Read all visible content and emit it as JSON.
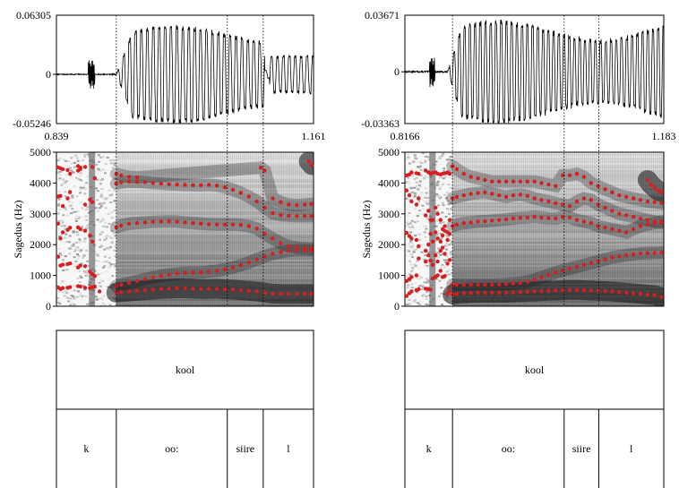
{
  "chart_data": [
    {
      "type": "line",
      "subtype": "waveform-spectrogram-textgrid",
      "waveform": {
        "ymax_label": "0.06305",
        "zero_label": "0",
        "ymin_label": "-0.05246",
        "ylim": [
          -0.05246,
          0.06305
        ]
      },
      "time_axis": {
        "start_label": "0.839",
        "end_label": "1.161",
        "xlim": [
          0.839,
          1.161
        ]
      },
      "spectrogram": {
        "ylabel": "Sagedus (Hz)",
        "yticks": [
          "0",
          "1000",
          "2000",
          "3000",
          "4000",
          "5000"
        ],
        "ylim": [
          0,
          5000
        ]
      },
      "formant_series": [
        {
          "x": [
            0.841,
            0.844,
            0.847,
            0.853,
            0.856,
            0.866,
            0.869,
            0.875,
            0.881,
            0.884,
            0.887,
            0.893
          ],
          "y": [
            610,
            560,
            590,
            600,
            620,
            650,
            640,
            600,
            590,
            620,
            640,
            480
          ]
        },
        {
          "x": [
            0.841,
            0.844,
            0.847,
            0.853,
            0.856,
            0.866,
            0.869,
            0.875,
            0.881,
            0.884,
            0.887
          ],
          "y": [
            1610,
            1320,
            1350,
            1370,
            1390,
            1260,
            1320,
            1300,
            1120,
            1040,
            980
          ]
        },
        {
          "x": [
            0.841,
            0.844,
            0.847,
            0.853,
            0.856,
            0.866,
            0.869,
            0.875,
            0.881,
            0.884
          ],
          "y": [
            2680,
            2200,
            2400,
            2480,
            2550,
            2560,
            2500,
            2450,
            2300,
            2100
          ]
        },
        {
          "x": [
            0.841,
            0.844,
            0.847,
            0.853,
            0.856,
            0.866,
            0.869,
            0.875,
            0.881,
            0.884
          ],
          "y": [
            3560,
            3580,
            3250,
            3500,
            3700,
            4400,
            4450,
            3300,
            3460,
            3380
          ]
        },
        {
          "x": [
            0.841,
            0.844,
            0.847,
            0.853,
            0.856,
            0.866,
            0.869,
            0.875,
            0.884,
            0.887
          ],
          "y": [
            4510,
            4480,
            4450,
            4420,
            4300,
            4550,
            4500,
            4520,
            4520,
            4160
          ]
        },
        {
          "x": [
            0.914,
            0.92,
            0.93,
            0.94,
            0.95,
            0.96,
            0.97,
            0.98,
            0.99,
            1.0,
            1.01,
            1.02,
            1.03,
            1.04,
            1.05,
            1.06,
            1.07,
            1.08,
            1.09,
            1.1,
            1.11,
            1.12,
            1.13,
            1.14,
            1.15,
            1.158
          ],
          "y": [
            440,
            460,
            480,
            500,
            520,
            540,
            560,
            570,
            580,
            580,
            570,
            560,
            560,
            570,
            550,
            540,
            520,
            500,
            480,
            440,
            410,
            400,
            400,
            400,
            400,
            400
          ]
        },
        {
          "x": [
            0.914,
            0.92,
            0.93,
            0.94,
            0.95,
            0.96,
            0.97,
            0.98,
            0.99,
            1.0,
            1.01,
            1.02,
            1.03,
            1.04,
            1.05,
            1.06,
            1.07,
            1.08,
            1.09,
            1.1,
            1.11,
            1.12,
            1.13,
            1.14,
            1.15,
            1.158
          ],
          "y": [
            660,
            700,
            760,
            820,
            880,
            940,
            990,
            1030,
            1060,
            1080,
            1090,
            1100,
            1120,
            1150,
            1200,
            1260,
            1330,
            1420,
            1520,
            1620,
            1700,
            1760,
            1800,
            1820,
            1820,
            1810
          ]
        },
        {
          "x": [
            0.914,
            0.92,
            0.93,
            0.94,
            0.95,
            0.96,
            0.97,
            0.98,
            0.99,
            1.0,
            1.01,
            1.02,
            1.03,
            1.04,
            1.05,
            1.06,
            1.07,
            1.08,
            1.09,
            1.1,
            1.11,
            1.12,
            1.13,
            1.14,
            1.15,
            1.158
          ],
          "y": [
            2560,
            2620,
            2680,
            2700,
            2720,
            2740,
            2750,
            2760,
            2750,
            2720,
            2700,
            2680,
            2660,
            2650,
            2650,
            2650,
            2640,
            2600,
            2520,
            2350,
            2200,
            2050,
            1950,
            1900,
            1880,
            1870
          ]
        },
        {
          "x": [
            0.914,
            0.92,
            0.93,
            0.94,
            0.95,
            0.96,
            0.97,
            0.98,
            0.99,
            1.0,
            1.01,
            1.02,
            1.03,
            1.04,
            1.05,
            1.06,
            1.07,
            1.08,
            1.09,
            1.1,
            1.11,
            1.12,
            1.13,
            1.14,
            1.15,
            1.158
          ],
          "y": [
            3980,
            4020,
            4050,
            4040,
            4030,
            4000,
            3980,
            3960,
            3950,
            3940,
            3930,
            3930,
            3940,
            3920,
            3860,
            3780,
            3680,
            3560,
            3400,
            3200,
            3020,
            2960,
            2940,
            2930,
            2930,
            2930
          ]
        },
        {
          "x": [
            0.914,
            0.92,
            0.93,
            0.94,
            1.095,
            1.1,
            1.11,
            1.12,
            1.13,
            1.14,
            1.15,
            1.158
          ],
          "y": [
            4300,
            4250,
            4200,
            4180,
            4500,
            4400,
            3500,
            3380,
            3300,
            3280,
            3300,
            3320
          ]
        },
        {
          "x": [
            1.155,
            1.159
          ],
          "y": [
            4700,
            4580
          ]
        }
      ],
      "boundaries": [
        0.914,
        1.053,
        1.098
      ],
      "tiers": [
        {
          "intervals": [
            {
              "label": "kool"
            }
          ]
        },
        {
          "intervals": [
            {
              "label": "k"
            },
            {
              "label": "oo:"
            },
            {
              "label": "siire"
            },
            {
              "label": "l"
            }
          ]
        }
      ]
    },
    {
      "type": "line",
      "subtype": "waveform-spectrogram-textgrid",
      "waveform": {
        "ymax_label": "0.03671",
        "zero_label": "0",
        "ymin_label": "-0.03363",
        "ylim": [
          -0.03363,
          0.03671
        ]
      },
      "time_axis": {
        "start_label": "0.8166",
        "end_label": "1.183",
        "xlim": [
          0.8166,
          1.183
        ]
      },
      "spectrogram": {
        "ylabel": "Sagedus (Hz)",
        "yticks": [
          "0",
          "1000",
          "2000",
          "3000",
          "4000",
          "5000"
        ],
        "ylim": [
          0,
          5000
        ]
      },
      "formant_series": [
        {
          "x": [
            0.819,
            0.823,
            0.826,
            0.833,
            0.836,
            0.846,
            0.85,
            0.853,
            0.856,
            0.86,
            0.863,
            0.867,
            0.87,
            0.873,
            0.877,
            0.88
          ],
          "y": [
            330,
            420,
            480,
            520,
            550,
            570,
            560,
            540,
            900,
            950,
            1000,
            1150,
            950,
            980,
            400,
            500
          ]
        },
        {
          "x": [
            0.819,
            0.823,
            0.826,
            0.833,
            0.836,
            0.846,
            0.85,
            0.853,
            0.856,
            0.86,
            0.863,
            0.867,
            0.87,
            0.873,
            0.877,
            0.88
          ],
          "y": [
            820,
            880,
            950,
            1000,
            1550,
            1800,
            1650,
            1480,
            1350,
            1650,
            1450,
            1800,
            1900,
            1700,
            1380,
            1500
          ]
        },
        {
          "x": [
            0.819,
            0.823,
            0.826,
            0.833,
            0.836,
            0.846,
            0.85,
            0.853,
            0.856,
            0.86,
            0.863,
            0.867,
            0.87,
            0.873,
            0.877,
            0.88
          ],
          "y": [
            2380,
            2280,
            2200,
            2150,
            1950,
            1450,
            2000,
            2350,
            2100,
            2400,
            2200,
            2100,
            2300,
            2450,
            2150,
            2350
          ]
        },
        {
          "x": [
            0.819,
            0.823,
            0.826,
            0.833,
            0.836,
            0.846,
            0.85,
            0.853,
            0.856,
            0.86,
            0.863,
            0.867,
            0.87,
            0.873,
            0.877,
            0.88
          ],
          "y": [
            3760,
            3600,
            3400,
            3300,
            3500,
            2950,
            3100,
            2800,
            2800,
            3200,
            3000,
            2800,
            2500,
            2600,
            2400,
            2800
          ]
        },
        {
          "x": [
            0.819,
            0.823,
            0.826,
            0.833,
            0.836,
            0.846,
            0.85,
            0.853,
            0.856,
            0.86,
            0.863,
            0.867,
            0.87,
            0.873,
            0.877,
            0.88
          ],
          "y": [
            4250,
            4280,
            4350,
            4320,
            4300,
            4400,
            4350,
            4300,
            4330,
            4350,
            4300,
            4280,
            4300,
            4320,
            4350,
            4300
          ]
        },
        {
          "x": [
            0.884,
            0.89,
            0.9,
            0.91,
            0.92,
            0.93,
            0.94,
            0.95,
            0.96,
            0.97,
            0.98,
            0.99,
            1.0,
            1.01,
            1.02,
            1.03,
            1.04,
            1.05,
            1.06,
            1.07,
            1.08,
            1.09,
            1.1,
            1.11,
            1.12,
            1.13,
            1.14,
            1.15,
            1.16,
            1.17,
            1.18
          ],
          "y": [
            380,
            400,
            420,
            430,
            440,
            440,
            440,
            440,
            440,
            450,
            460,
            470,
            480,
            490,
            500,
            510,
            520,
            530,
            530,
            520,
            510,
            500,
            490,
            480,
            460,
            440,
            420,
            400,
            380,
            360,
            300
          ]
        },
        {
          "x": [
            0.884,
            0.89,
            0.9,
            0.91,
            0.92,
            0.93,
            0.94,
            0.95,
            0.96,
            0.97,
            0.98,
            0.99,
            1.0,
            1.01,
            1.02,
            1.03,
            1.04,
            1.05,
            1.06,
            1.07,
            1.08,
            1.09,
            1.1,
            1.11,
            1.12,
            1.13,
            1.14,
            1.15,
            1.16,
            1.17,
            1.18
          ],
          "y": [
            700,
            700,
            700,
            700,
            700,
            700,
            700,
            710,
            720,
            740,
            760,
            800,
            860,
            940,
            1020,
            1100,
            1160,
            1220,
            1280,
            1340,
            1400,
            1460,
            1520,
            1580,
            1620,
            1660,
            1690,
            1710,
            1720,
            1730,
            1740
          ]
        },
        {
          "x": [
            0.884,
            0.89,
            0.9,
            0.91,
            0.92,
            0.93,
            0.94,
            0.95,
            0.96,
            0.97,
            0.98,
            0.99,
            1.0,
            1.01,
            1.02,
            1.03,
            1.04,
            1.05,
            1.06,
            1.07,
            1.08,
            1.09,
            1.1,
            1.11,
            1.12,
            1.13,
            1.14,
            1.15,
            1.16,
            1.17,
            1.18
          ],
          "y": [
            2600,
            2650,
            2700,
            2720,
            2750,
            2760,
            2780,
            2800,
            2820,
            2850,
            2870,
            2880,
            2900,
            2880,
            2860,
            2850,
            2900,
            2880,
            2800,
            2750,
            2700,
            2600,
            2550,
            2500,
            2450,
            2400,
            2500,
            2600,
            2650,
            2700,
            2750
          ]
        },
        {
          "x": [
            0.884,
            0.89,
            0.9,
            0.91,
            0.92,
            0.93,
            0.94,
            0.95,
            0.96,
            0.97,
            0.98,
            0.99,
            1.0,
            1.01,
            1.02,
            1.03,
            1.04,
            1.05,
            1.06,
            1.07,
            1.08,
            1.09,
            1.1,
            1.11,
            1.12,
            1.13,
            1.14,
            1.15,
            1.16,
            1.17,
            1.18
          ],
          "y": [
            3500,
            3550,
            3600,
            3650,
            3680,
            3700,
            3650,
            3600,
            3550,
            3600,
            3620,
            3580,
            3500,
            3450,
            3400,
            3350,
            3300,
            3250,
            3400,
            3500,
            3450,
            3300,
            3200,
            3100,
            3000,
            2950,
            2900,
            2850,
            2800,
            2750,
            2700
          ]
        },
        {
          "x": [
            0.884,
            0.89,
            0.9,
            0.91,
            0.92,
            0.93,
            0.94,
            0.95,
            0.96,
            0.97,
            0.98,
            0.99,
            1.0,
            1.01,
            1.02,
            1.03,
            1.04,
            1.05,
            1.06,
            1.07,
            1.08,
            1.09,
            1.1,
            1.11,
            1.12,
            1.13,
            1.14,
            1.15,
            1.16,
            1.17,
            1.18
          ],
          "y": [
            4550,
            4450,
            4300,
            4200,
            4150,
            4100,
            4050,
            4050,
            4050,
            4050,
            4050,
            4050,
            4050,
            4000,
            3950,
            3900,
            4250,
            4250,
            4300,
            4200,
            4000,
            3900,
            3800,
            3700,
            3600,
            3550,
            3500,
            3450,
            3400,
            3380,
            3350
          ]
        },
        {
          "x": [
            1.16,
            1.165,
            1.17,
            1.175,
            1.18
          ],
          "y": [
            4100,
            3950,
            3850,
            3750,
            3700
          ]
        }
      ],
      "boundaries": [
        0.884,
        1.042,
        1.091
      ],
      "tiers": [
        {
          "intervals": [
            {
              "label": "kool"
            }
          ]
        },
        {
          "intervals": [
            {
              "label": "k"
            },
            {
              "label": "oo:"
            },
            {
              "label": "siire"
            },
            {
              "label": "l"
            }
          ]
        }
      ]
    }
  ]
}
